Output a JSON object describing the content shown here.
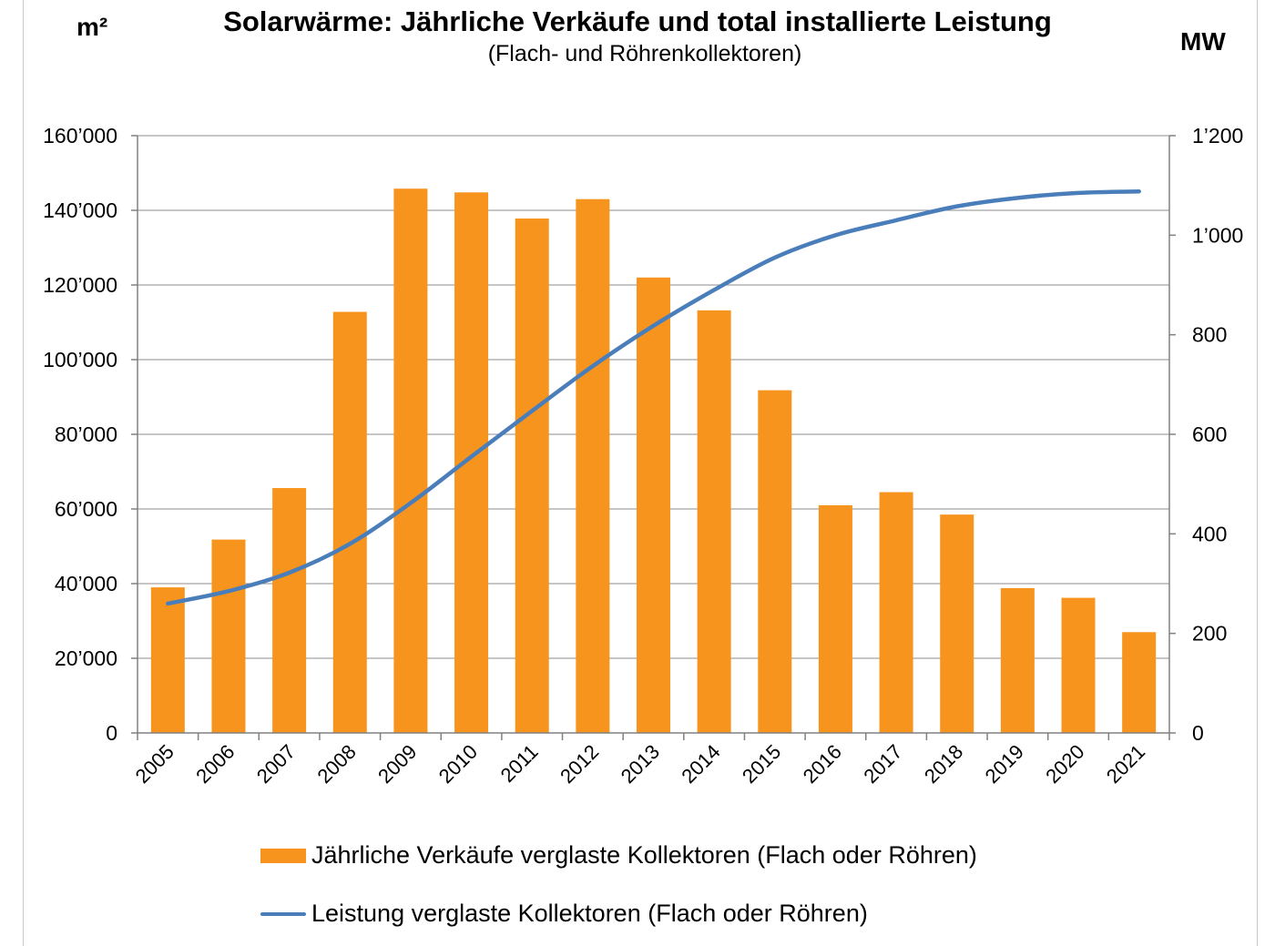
{
  "chart_data": {
    "type": "bar+line",
    "title": "Solarwärme: Jährliche Verkäufe und total installierte Leistung",
    "subtitle": "(Flach- und Röhrenkollektoren)",
    "y_left_unit": "m²",
    "y_right_unit": "MW",
    "categories": [
      "2005",
      "2006",
      "2007",
      "2008",
      "2009",
      "2010",
      "2011",
      "2012",
      "2013",
      "2014",
      "2015",
      "2016",
      "2017",
      "2018",
      "2019",
      "2020",
      "2021"
    ],
    "y_left": {
      "min": 0,
      "max": 160000,
      "step": 20000,
      "ticks": [
        "0",
        "20’000",
        "40’000",
        "60’000",
        "80’000",
        "100’000",
        "120’000",
        "140’000",
        "160’000"
      ]
    },
    "y_right": {
      "min": 0,
      "max": 1200,
      "step": 200,
      "ticks": [
        "0",
        "200",
        "400",
        "600",
        "800",
        "1’000",
        "1’200"
      ]
    },
    "grid": true,
    "legend_position": "bottom",
    "colors": {
      "bars": "#f7941d",
      "line": "#4a7ebb",
      "grid": "#8c8c8c",
      "axis": "#808080"
    },
    "series": [
      {
        "name": "Jährliche Verkäufe verglaste Kollektoren (Flach oder Röhren)",
        "type": "bar",
        "axis": "left",
        "values": [
          39000,
          51800,
          65600,
          112800,
          145800,
          144800,
          137800,
          143000,
          122000,
          113200,
          91800,
          61000,
          64500,
          58500,
          38800,
          36200,
          27000
        ]
      },
      {
        "name": "Leistung verglaste Kollektoren (Flach oder Röhren)",
        "type": "line",
        "axis": "right",
        "values": [
          260,
          285,
          322,
          380,
          462,
          555,
          647,
          737,
          818,
          890,
          955,
          1000,
          1030,
          1058,
          1075,
          1085,
          1088
        ]
      }
    ]
  }
}
